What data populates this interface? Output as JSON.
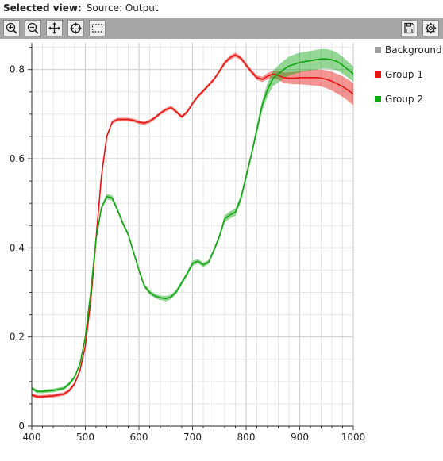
{
  "header": {
    "label": "Selected view:",
    "source": "Source: Output"
  },
  "toolbar": {
    "left_icons": [
      "zoom-in-icon",
      "zoom-out-icon",
      "pan-icon",
      "crosshair-icon",
      "select-rect-icon"
    ],
    "right_icons": [
      "save-icon",
      "settings-icon"
    ]
  },
  "legend": [
    {
      "label": "Background",
      "color": "#a0a0a0"
    },
    {
      "label": "Group 1",
      "color": "#e8140f"
    },
    {
      "label": "Group 2",
      "color": "#11a611"
    }
  ],
  "chart_data": {
    "type": "line",
    "title": "",
    "xlabel": "",
    "ylabel": "",
    "xlim": [
      400,
      1000
    ],
    "ylim": [
      0,
      0.86
    ],
    "xticks": [
      "400",
      "500",
      "600",
      "700",
      "800",
      "900",
      "1000"
    ],
    "yticks": [
      "0",
      "0.2",
      "0.4",
      "0.6",
      "0.8"
    ],
    "grid": true,
    "legend_position": "right",
    "series": [
      {
        "name": "Group 1",
        "color": "#e8140f",
        "x": [
          400,
          410,
          420,
          440,
          460,
          470,
          480,
          490,
          500,
          510,
          520,
          530,
          540,
          550,
          560,
          570,
          580,
          590,
          600,
          610,
          620,
          630,
          640,
          650,
          660,
          670,
          680,
          690,
          700,
          710,
          720,
          730,
          740,
          750,
          760,
          770,
          780,
          790,
          800,
          810,
          820,
          830,
          840,
          850,
          860,
          870,
          880,
          890,
          900,
          910,
          920,
          930,
          940,
          950,
          960,
          970,
          980,
          990,
          1000
        ],
        "y": [
          0.07,
          0.066,
          0.066,
          0.068,
          0.072,
          0.08,
          0.095,
          0.125,
          0.18,
          0.28,
          0.42,
          0.56,
          0.65,
          0.682,
          0.688,
          0.688,
          0.688,
          0.686,
          0.682,
          0.68,
          0.684,
          0.692,
          0.702,
          0.71,
          0.715,
          0.705,
          0.694,
          0.705,
          0.724,
          0.74,
          0.752,
          0.765,
          0.778,
          0.796,
          0.815,
          0.827,
          0.833,
          0.826,
          0.81,
          0.795,
          0.782,
          0.778,
          0.785,
          0.79,
          0.787,
          0.782,
          0.781,
          0.781,
          0.782,
          0.782,
          0.782,
          0.782,
          0.781,
          0.778,
          0.774,
          0.768,
          0.762,
          0.754,
          0.745
        ],
        "band": [
          0.004,
          0.004,
          0.004,
          0.004,
          0.004,
          0.004,
          0.004,
          0.004,
          0.004,
          0.004,
          0.004,
          0.004,
          0.004,
          0.004,
          0.004,
          0.004,
          0.004,
          0.004,
          0.004,
          0.004,
          0.004,
          0.004,
          0.004,
          0.004,
          0.004,
          0.004,
          0.004,
          0.004,
          0.004,
          0.004,
          0.004,
          0.004,
          0.004,
          0.004,
          0.005,
          0.005,
          0.005,
          0.005,
          0.005,
          0.005,
          0.005,
          0.006,
          0.007,
          0.008,
          0.01,
          0.012,
          0.013,
          0.014,
          0.015,
          0.016,
          0.017,
          0.018,
          0.019,
          0.02,
          0.021,
          0.022,
          0.023,
          0.024,
          0.025
        ]
      },
      {
        "name": "Group 2",
        "color": "#11a611",
        "x": [
          400,
          410,
          420,
          440,
          460,
          470,
          480,
          490,
          500,
          510,
          520,
          530,
          540,
          550,
          560,
          570,
          580,
          590,
          600,
          610,
          620,
          630,
          640,
          650,
          660,
          670,
          680,
          690,
          700,
          710,
          720,
          730,
          740,
          750,
          760,
          770,
          780,
          790,
          800,
          810,
          820,
          830,
          840,
          850,
          860,
          870,
          880,
          890,
          900,
          910,
          920,
          930,
          940,
          950,
          960,
          970,
          980,
          990,
          1000
        ],
        "y": [
          0.085,
          0.078,
          0.078,
          0.08,
          0.085,
          0.095,
          0.11,
          0.14,
          0.2,
          0.3,
          0.42,
          0.49,
          0.515,
          0.512,
          0.485,
          0.455,
          0.43,
          0.39,
          0.35,
          0.315,
          0.3,
          0.292,
          0.288,
          0.286,
          0.29,
          0.302,
          0.322,
          0.342,
          0.365,
          0.37,
          0.362,
          0.368,
          0.395,
          0.425,
          0.465,
          0.474,
          0.48,
          0.51,
          0.56,
          0.61,
          0.665,
          0.72,
          0.755,
          0.78,
          0.79,
          0.8,
          0.808,
          0.812,
          0.816,
          0.818,
          0.82,
          0.822,
          0.824,
          0.824,
          0.822,
          0.818,
          0.81,
          0.8,
          0.79
        ],
        "band": [
          0.004,
          0.004,
          0.004,
          0.004,
          0.004,
          0.004,
          0.004,
          0.004,
          0.004,
          0.004,
          0.004,
          0.004,
          0.006,
          0.006,
          0.005,
          0.005,
          0.005,
          0.005,
          0.005,
          0.005,
          0.005,
          0.005,
          0.005,
          0.006,
          0.005,
          0.005,
          0.005,
          0.005,
          0.006,
          0.005,
          0.005,
          0.005,
          0.005,
          0.006,
          0.008,
          0.008,
          0.008,
          0.008,
          0.008,
          0.008,
          0.01,
          0.012,
          0.015,
          0.017,
          0.019,
          0.02,
          0.021,
          0.022,
          0.022,
          0.022,
          0.022,
          0.022,
          0.022,
          0.022,
          0.021,
          0.02,
          0.019,
          0.018,
          0.017
        ]
      }
    ]
  }
}
